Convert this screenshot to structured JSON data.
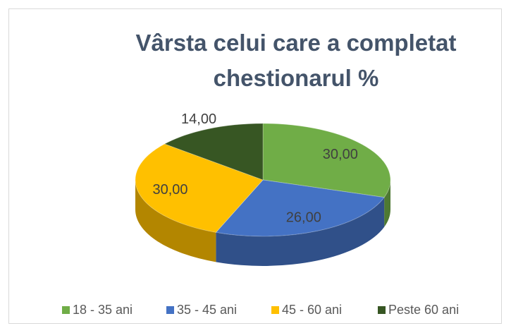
{
  "chart_data": {
    "type": "pie",
    "title": "Vârsta celui care a completat chestionarul %",
    "categories": [
      "18 - 35 ani",
      "35 - 45 ani",
      "45 - 60 ani",
      "Peste 60 ani"
    ],
    "values": [
      30,
      26,
      30,
      14
    ],
    "value_labels": [
      "30,00",
      "26,00",
      "30,00",
      "14,00"
    ],
    "colors": [
      "#70ad47",
      "#4472c4",
      "#ffc000",
      "#375623"
    ],
    "legend": "bottom"
  }
}
